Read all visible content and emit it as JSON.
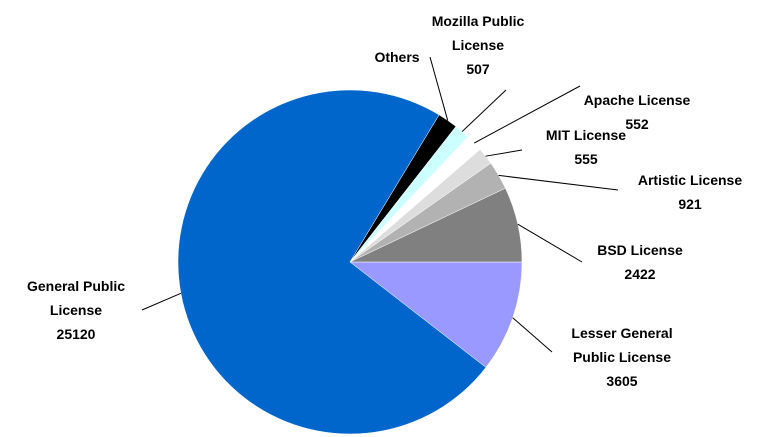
{
  "chart_data": {
    "type": "pie",
    "categories": [
      "Lesser General Public License",
      "General Public License",
      "Others",
      "Mozilla Public License",
      "Apache License",
      "MIT License",
      "Artistic License",
      "BSD License"
    ],
    "values": [
      3605,
      25120,
      650,
      507,
      552,
      555,
      921,
      2422
    ],
    "colors": [
      "#9999ff",
      "#0066cc",
      "#000000",
      "#ccffff",
      "#ffffff",
      "#dddddd",
      "#b2b2b2",
      "#808080"
    ],
    "value_label_shown": [
      true,
      true,
      false,
      true,
      true,
      true,
      true,
      true
    ]
  }
}
